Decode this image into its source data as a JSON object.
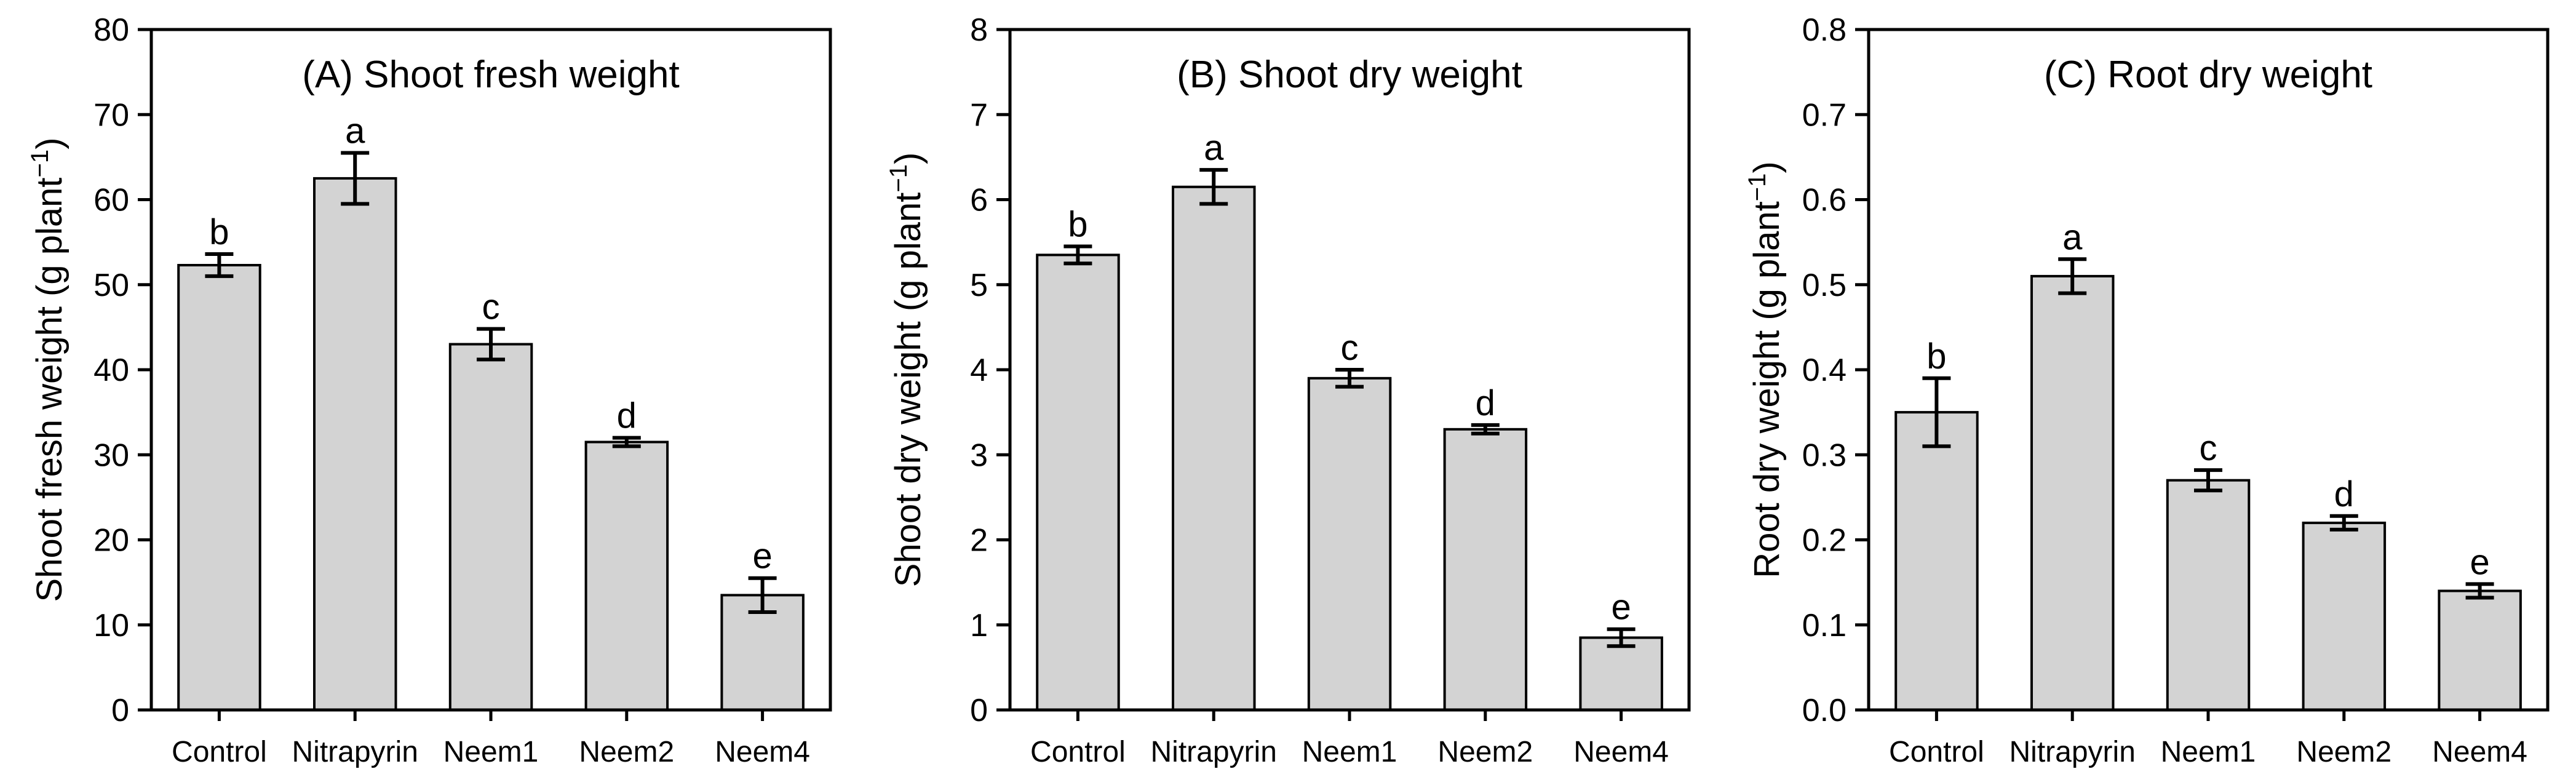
{
  "figure": {
    "background": "#ffffff",
    "bar_fill": "#d3d3d3",
    "bar_stroke": "#000000",
    "axis_color": "#000000",
    "text_color": "#000000"
  },
  "chart_data": [
    {
      "type": "bar",
      "panel_id": "a",
      "title": "(A) Shoot fresh weight",
      "ylabel_prefix": "Shoot fresh weight (g plant",
      "ylabel_sup": "−1",
      "ylabel_suffix": ")",
      "xlabel": "",
      "ylim": [
        0,
        80
      ],
      "grid": false,
      "legend": "none",
      "ytick_values": [
        0,
        10,
        20,
        30,
        40,
        50,
        60,
        70,
        80
      ],
      "ytick_labels": [
        "0",
        "10",
        "20",
        "30",
        "40",
        "50",
        "60",
        "70",
        "80"
      ],
      "categories": [
        "Control",
        "Nitrapyrin",
        "Neem1",
        "Neem2",
        "Neem4"
      ],
      "values": [
        52.3,
        62.5,
        43.0,
        31.5,
        13.5
      ],
      "errors": [
        1.3,
        3.0,
        1.8,
        0.5,
        2.0
      ],
      "sig_letters": [
        "b",
        "a",
        "c",
        "d",
        "e"
      ]
    },
    {
      "type": "bar",
      "panel_id": "b",
      "title": "(B) Shoot dry weight",
      "ylabel_prefix": "Shoot dry weight (g plant",
      "ylabel_sup": "−1",
      "ylabel_suffix": ")",
      "xlabel": "",
      "ylim": [
        0,
        8
      ],
      "grid": false,
      "legend": "none",
      "ytick_values": [
        0,
        1,
        2,
        3,
        4,
        5,
        6,
        7,
        8
      ],
      "ytick_labels": [
        "0",
        "1",
        "2",
        "3",
        "4",
        "5",
        "6",
        "7",
        "8"
      ],
      "categories": [
        "Control",
        "Nitrapyrin",
        "Neem1",
        "Neem2",
        "Neem4"
      ],
      "values": [
        5.35,
        6.15,
        3.9,
        3.3,
        0.85
      ],
      "errors": [
        0.1,
        0.2,
        0.1,
        0.05,
        0.1
      ],
      "sig_letters": [
        "b",
        "a",
        "c",
        "d",
        "e"
      ]
    },
    {
      "type": "bar",
      "panel_id": "c",
      "title": "(C) Root dry weight",
      "ylabel_prefix": "Root dry weight (g plant",
      "ylabel_sup": "−1",
      "ylabel_suffix": ")",
      "xlabel": "",
      "ylim": [
        0,
        0.8
      ],
      "grid": false,
      "legend": "none",
      "ytick_values": [
        0,
        0.1,
        0.2,
        0.3,
        0.4,
        0.5,
        0.6,
        0.7,
        0.8
      ],
      "ytick_labels": [
        "0.0",
        "0.1",
        "0.2",
        "0.3",
        "0.4",
        "0.5",
        "0.6",
        "0.7",
        "0.8"
      ],
      "categories": [
        "Control",
        "Nitrapyrin",
        "Neem1",
        "Neem2",
        "Neem4"
      ],
      "values": [
        0.35,
        0.51,
        0.27,
        0.22,
        0.14
      ],
      "errors": [
        0.04,
        0.02,
        0.012,
        0.008,
        0.008
      ],
      "sig_letters": [
        "b",
        "a",
        "c",
        "d",
        "e"
      ]
    }
  ]
}
